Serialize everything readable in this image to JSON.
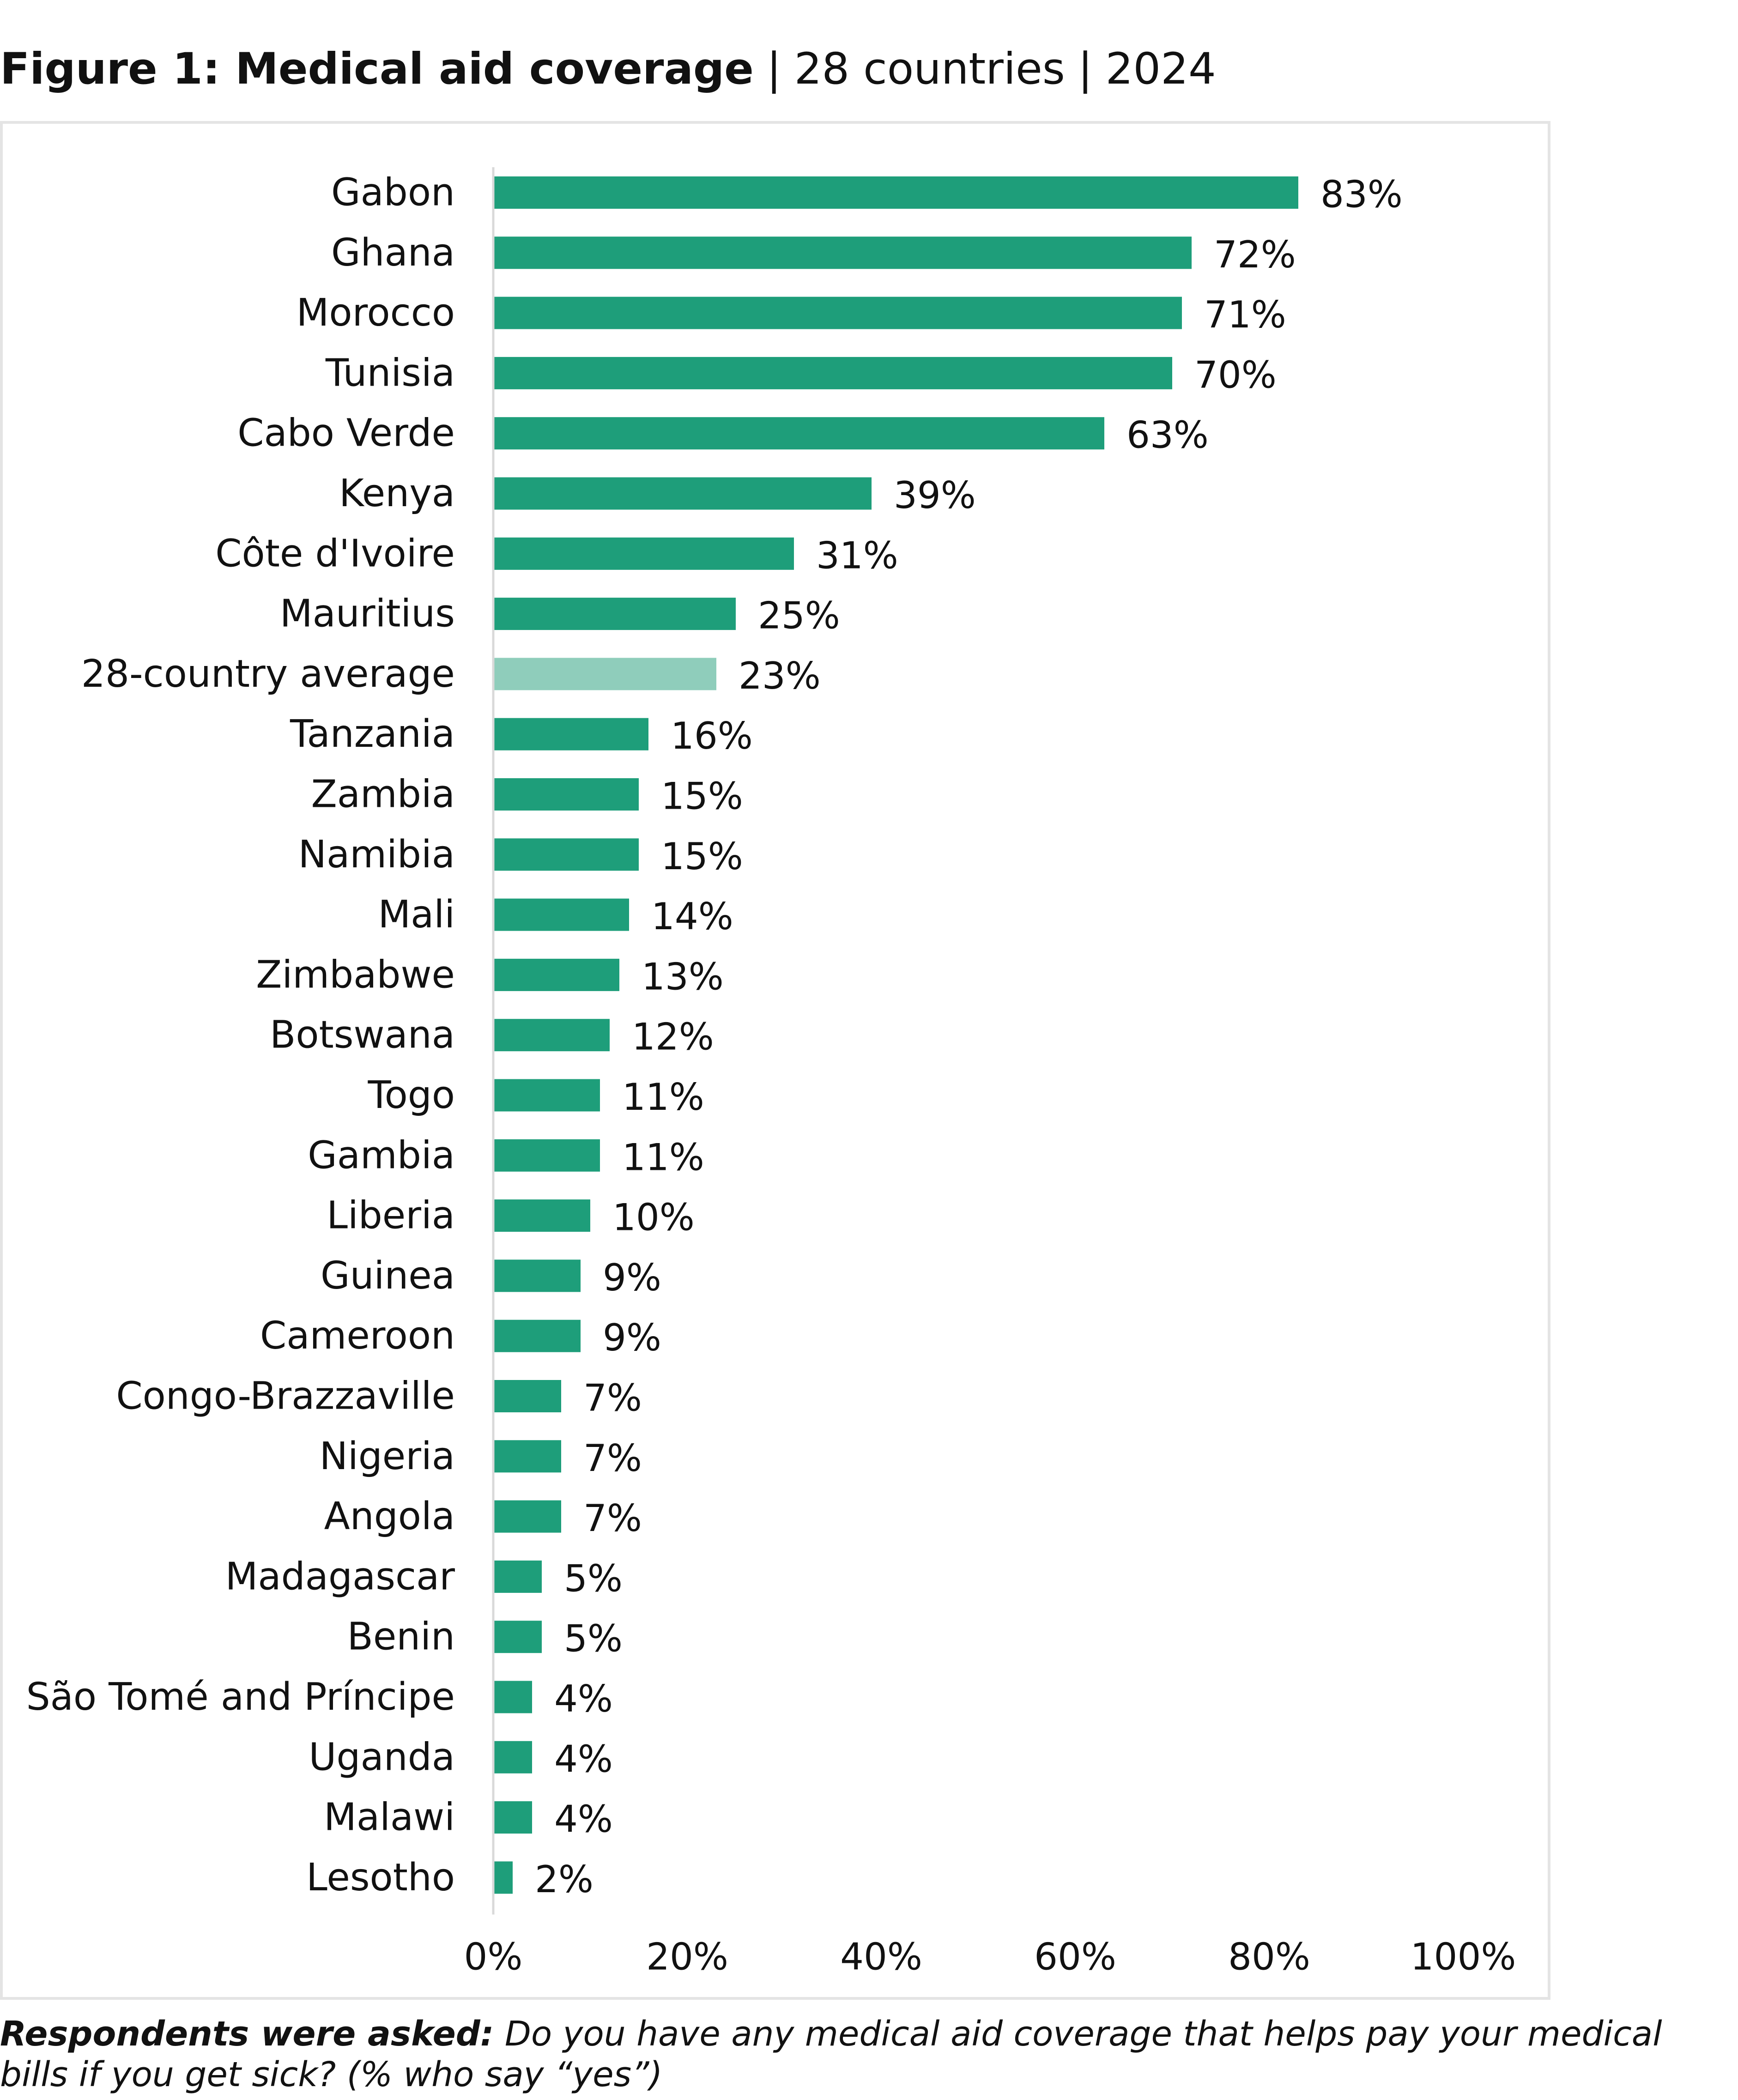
{
  "title": {
    "bold": "Figure 1: Medical aid coverage",
    "sep1": "|",
    "part2": "28 countries",
    "sep2": "|",
    "part3": "2024"
  },
  "footnote": {
    "lead": "Respondents were asked:",
    "text": "Do you have any medical aid coverage that helps pay your medical bills if you get sick? (% who say “yes”)"
  },
  "colors": {
    "bar": "#1e9e7a",
    "average_bar": "#8fcdbb",
    "axis": "#d9d9d9"
  },
  "chart_data": {
    "type": "bar",
    "orientation": "horizontal",
    "categories": [
      "Gabon",
      "Ghana",
      "Morocco",
      "Tunisia",
      "Cabo Verde",
      "Kenya",
      "Côte d'Ivoire",
      "Mauritius",
      "28-country average",
      "Tanzania",
      "Zambia",
      "Namibia",
      "Mali",
      "Zimbabwe",
      "Botswana",
      "Togo",
      "Gambia",
      "Liberia",
      "Guinea",
      "Cameroon",
      "Congo-Brazzaville",
      "Nigeria",
      "Angola",
      "Madagascar",
      "Benin",
      "São Tomé and Príncipe",
      "Uganda",
      "Malawi",
      "Lesotho"
    ],
    "values": [
      83,
      72,
      71,
      70,
      63,
      39,
      31,
      25,
      23,
      16,
      15,
      15,
      14,
      13,
      12,
      11,
      11,
      10,
      9,
      9,
      7,
      7,
      7,
      5,
      5,
      4,
      4,
      4,
      2
    ],
    "data_labels": [
      "83%",
      "72%",
      "71%",
      "70%",
      "63%",
      "39%",
      "31%",
      "25%",
      "23%",
      "16%",
      "15%",
      "15%",
      "14%",
      "13%",
      "12%",
      "11%",
      "11%",
      "10%",
      "9%",
      "9%",
      "7%",
      "7%",
      "7%",
      "5%",
      "5%",
      "4%",
      "4%",
      "4%",
      "2%"
    ],
    "highlight_category": "28-country average",
    "xlim": [
      0,
      100
    ],
    "xticks": [
      0,
      20,
      40,
      60,
      80,
      100
    ],
    "xtick_labels": [
      "0%",
      "20%",
      "40%",
      "60%",
      "80%",
      "100%"
    ],
    "grid": false,
    "legend": "none"
  }
}
